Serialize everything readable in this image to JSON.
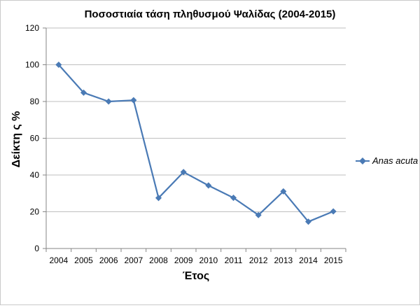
{
  "chart_data": {
    "type": "line",
    "title": "Ποσοστιαία τάση πληθυσμού Ψαλίδας (2004-2015)",
    "xlabel": "Έτος",
    "ylabel": "Δείκτη ς %",
    "categories": [
      "2004",
      "2005",
      "2006",
      "2007",
      "2008",
      "2009",
      "2010",
      "2011",
      "2012",
      "2013",
      "2014",
      "2015"
    ],
    "series": [
      {
        "name": "Anas acuta",
        "values": [
          100,
          84.8,
          80,
          80.7,
          27.5,
          41.6,
          34.3,
          27.6,
          18.2,
          31.1,
          14.6,
          20.2
        ],
        "color": "#4a7ab5"
      }
    ],
    "ylim": [
      0,
      120
    ],
    "yticks": [
      "0",
      "20",
      "40",
      "60",
      "80",
      "100",
      "120"
    ],
    "grid": true,
    "legend": "right",
    "colors": {
      "gridline": "#bfbfbf",
      "axis": "#868686",
      "series": "#4a7ab5"
    }
  }
}
